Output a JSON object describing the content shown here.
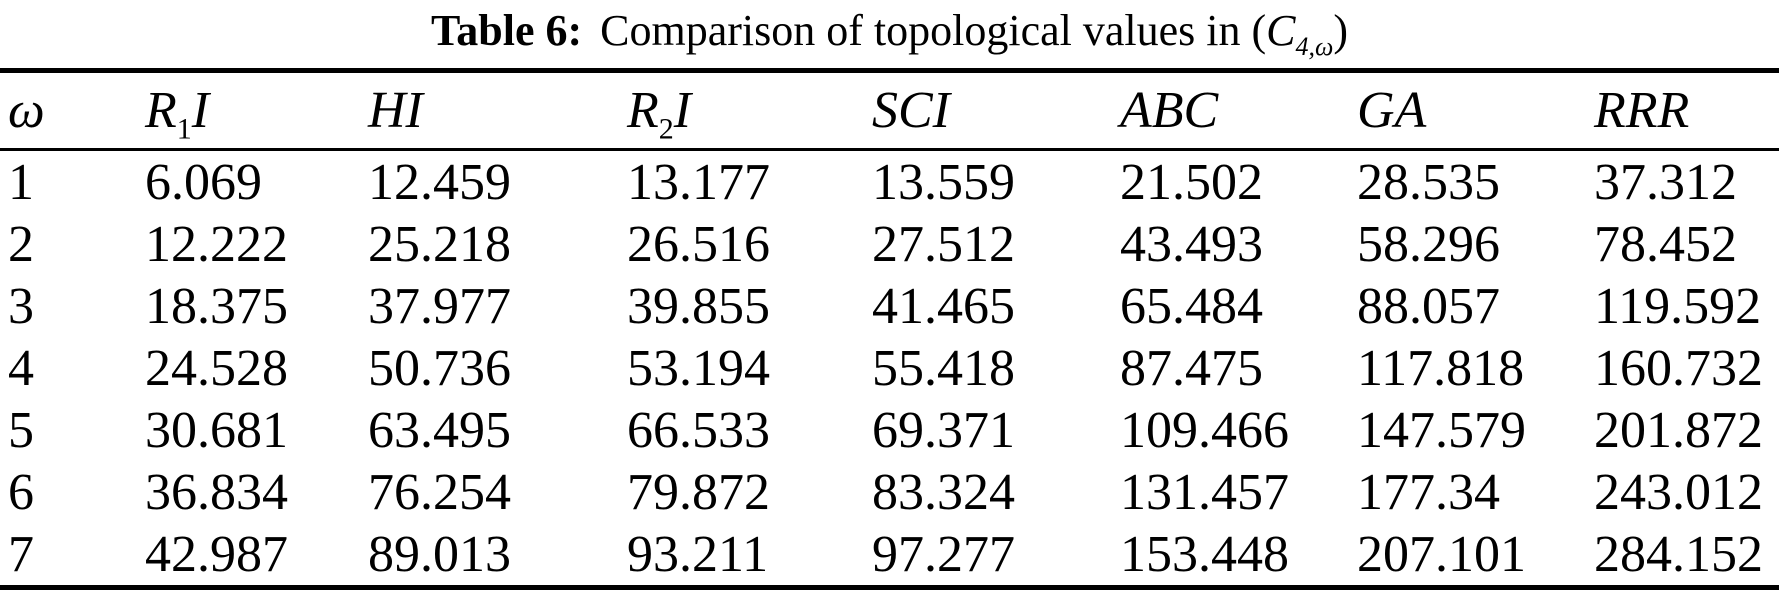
{
  "title": {
    "label": "Table 6:",
    "text": "Comparison of topological values in",
    "paren_open": "(",
    "graph_letter": "C",
    "graph_subscript": "4,ω",
    "paren_close": ")"
  },
  "table": {
    "columns": [
      {
        "pre": "ω"
      },
      {
        "pre": "R",
        "sub": "1",
        "post": "I"
      },
      {
        "pre": "HI"
      },
      {
        "pre": "R",
        "sub": "2",
        "post": "I"
      },
      {
        "pre": "SCI"
      },
      {
        "pre": "ABC"
      },
      {
        "pre": "GA"
      },
      {
        "pre": "RRR"
      }
    ],
    "rows": [
      [
        "1",
        "6.069",
        "12.459",
        "13.177",
        "13.559",
        "21.502",
        "28.535",
        "37.312"
      ],
      [
        "2",
        "12.222",
        "25.218",
        "26.516",
        "27.512",
        "43.493",
        "58.296",
        "78.452"
      ],
      [
        "3",
        "18.375",
        "37.977",
        "39.855",
        "41.465",
        "65.484",
        "88.057",
        "119.592"
      ],
      [
        "4",
        "24.528",
        "50.736",
        "53.194",
        "55.418",
        "87.475",
        "117.818",
        "160.732"
      ],
      [
        "5",
        "30.681",
        "63.495",
        "66.533",
        "69.371",
        "109.466",
        "147.579",
        "201.872"
      ],
      [
        "6",
        "36.834",
        "76.254",
        "79.872",
        "83.324",
        "131.457",
        "177.34",
        "243.012"
      ],
      [
        "7",
        "42.987",
        "89.013",
        "93.211",
        "97.277",
        "153.448",
        "207.101",
        "284.152"
      ]
    ]
  },
  "colors": {
    "text": "#000000",
    "background": "#ffffff",
    "rule": "#000000"
  }
}
